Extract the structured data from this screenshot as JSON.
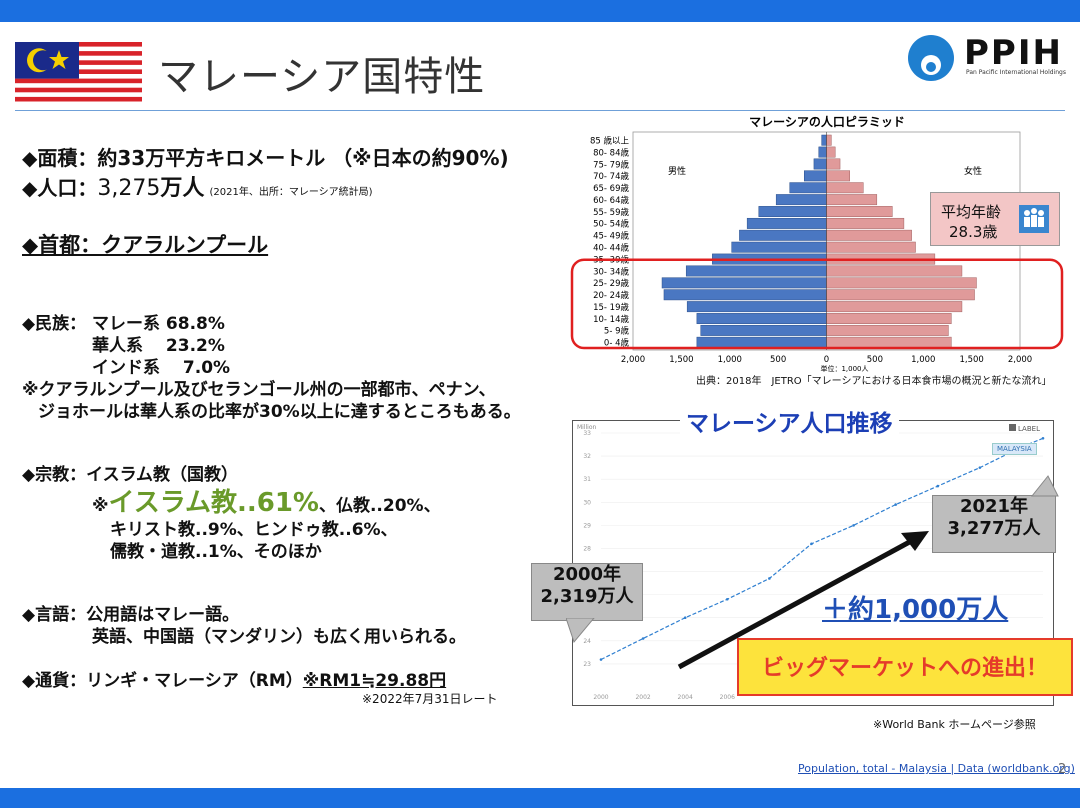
{
  "header": {
    "title": "マレーシア国特性",
    "logo_text": "PPIH",
    "logo_subtext": "Pan Pacific International Holdings"
  },
  "left": {
    "area": "◆面積：約33万平方キロメートル （※日本の約90%)",
    "population_label": "◆人口：",
    "population_value": "3,275",
    "population_unit": "万人",
    "population_note": "(2021年、出所：マレーシア統計局)",
    "capital": "◆首都：クアラルンプール",
    "ethnic_label": "◆民族：",
    "ethnic_lines": [
      "マレー系 68.8%",
      "華人系　 23.2%",
      "インド系　 7.0%"
    ],
    "ethnic_note_1": "※クアラルンプール及びセランゴール州の一部都市、ペナン、",
    "ethnic_note_2": "ジョホールは華人系の比率が30%以上に達するところもある。",
    "religion_label": "◆宗教：イスラム教（国教）",
    "religion_mark": "※",
    "religion_highlight": "イスラム教..61%",
    "religion_rest": "、仏教..20%、",
    "religion_line2": "キリスト教..9%、ヒンドゥ教..6%、",
    "religion_line3": "儒教・道教..1%、そのほか",
    "language_label": "◆言語：公用語はマレー語。",
    "language_line2": "英語、中国語（マンダリン）も広く用いられる。",
    "currency_label": "◆通貨：リンギ・マレーシア（RM）",
    "currency_rate": "※RM1≒29.88円",
    "currency_note": "※2022年7月31日レート"
  },
  "pyramid": {
    "title": "マレーシアの人口ピラミッド",
    "male_label": "男性",
    "female_label": "女性",
    "avg_age_label": "平均年齢",
    "avg_age_value": "28.3歳",
    "unit": "単位：1,000人",
    "source": "出典：2018年　JETRO「マレーシアにおける日本食市場の概況と新たな流れ」",
    "male_color": "#4a77c2",
    "female_color": "#e09a9a",
    "highlight_color": "#e02020"
  },
  "trend": {
    "title": "マレーシア人口推移",
    "y_axis_label": "Million",
    "legend_label": "LABEL",
    "series_label": "MALAYSIA",
    "callout_2000_year": "2000年",
    "callout_2000_value": "2,319万人",
    "callout_2021_year": "2021年",
    "callout_2021_value": "3,277万人",
    "increase": "＋約1,000万人",
    "big_market": "ビッグマーケットへの進出！",
    "source_note": "※World Bank ホームページ参照",
    "line_color": "#2f7fd0"
  },
  "footer": {
    "link": "Population, total - Malaysia | Data (worldbank.org)",
    "page_number": "2"
  },
  "chart_data": [
    {
      "type": "bar",
      "title": "マレーシアの人口ピラミッド",
      "orientation": "horizontal",
      "categories": [
        "85 歳以上",
        "80- 84歳",
        "75- 79歳",
        "70- 74歳",
        "65- 69歳",
        "60- 64歳",
        "55- 59歳",
        "50- 54歳",
        "45- 49歳",
        "40- 44歳",
        "35- 39歳",
        "30- 34歳",
        "25- 29歳",
        "20- 24歳",
        "15- 19歳",
        "10- 14歳",
        "5- 9歳",
        "0- 4歳"
      ],
      "series": [
        {
          "name": "男性",
          "values": [
            50,
            80,
            130,
            230,
            380,
            520,
            700,
            820,
            900,
            980,
            1180,
            1450,
            1700,
            1680,
            1440,
            1340,
            1300,
            1340
          ]
        },
        {
          "name": "女性",
          "values": [
            50,
            90,
            140,
            240,
            380,
            520,
            680,
            800,
            880,
            920,
            1120,
            1400,
            1550,
            1530,
            1400,
            1290,
            1260,
            1290
          ]
        }
      ],
      "xlim": [
        -2000,
        2000
      ],
      "ticks": [
        "2,000",
        "1,500",
        "1,000",
        "500",
        "0",
        "500",
        "1,000",
        "1,500",
        "2,000"
      ],
      "xlabel": "単位：1,000人"
    },
    {
      "type": "line",
      "title": "マレーシア人口推移",
      "ylabel": "Million",
      "x": [
        "2000",
        "2002",
        "2004",
        "2006",
        "2008",
        "2010",
        "2012",
        "2014",
        "2016",
        "2018",
        "2020",
        "2021"
      ],
      "series": [
        {
          "name": "MALAYSIA",
          "values": [
            23.19,
            24.1,
            25.0,
            25.8,
            26.7,
            28.2,
            29.0,
            29.9,
            30.7,
            31.5,
            32.4,
            32.77
          ]
        }
      ],
      "ylim": [
        22,
        33
      ],
      "y_ticks": [
        "33",
        "32",
        "31",
        "30",
        "29",
        "28",
        "27",
        "26",
        "25",
        "24",
        "23"
      ],
      "x_ticks": [
        "2000",
        "2002",
        "2004",
        "2006"
      ]
    }
  ]
}
